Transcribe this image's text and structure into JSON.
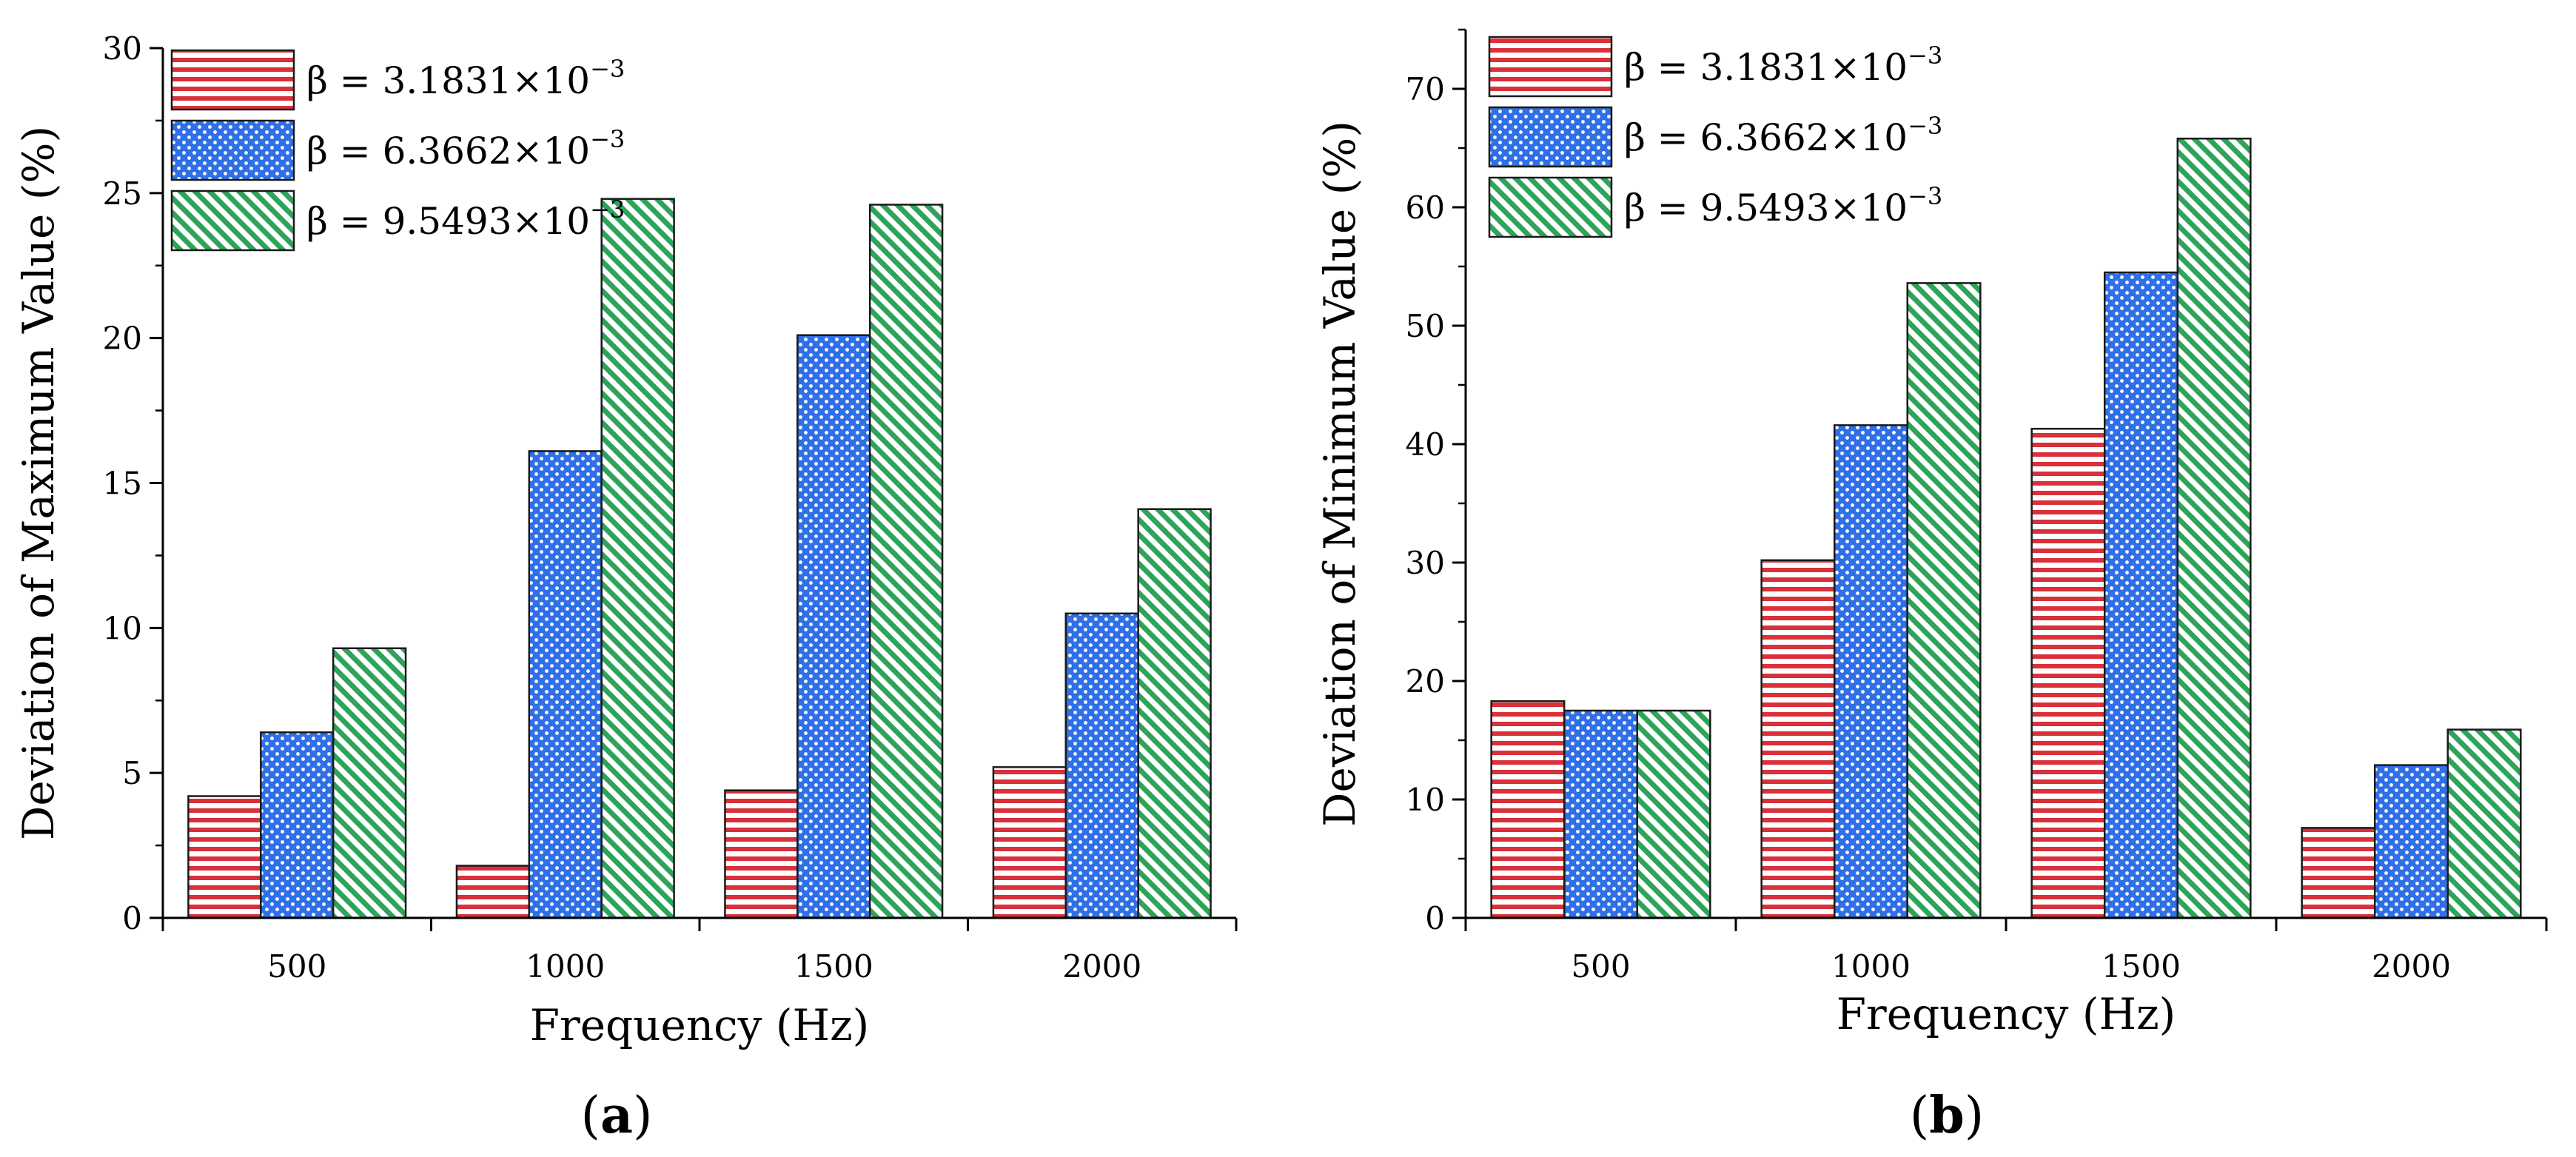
{
  "figure": {
    "panels": [
      {
        "label_open": "(",
        "label_letter": "a",
        "label_close": ")"
      },
      {
        "label_open": "(",
        "label_letter": "b",
        "label_close": ")"
      }
    ]
  },
  "colors": {
    "s1_stroke": "#d9303a",
    "s1_fill": "#f5b5b8",
    "s2_stroke": "#1f4fc4",
    "s2_fill": "#2f6fe8",
    "s3_stroke": "#1f8a43",
    "s3_fill": "#2fa35a"
  },
  "chart_data": [
    {
      "type": "bar",
      "title": "",
      "xlabel": "Frequency (Hz)",
      "ylabel": "Deviation of Maximum Value (%)",
      "categories": [
        "500",
        "1000",
        "1500",
        "2000"
      ],
      "ylim": [
        0,
        30
      ],
      "yticks": [
        0,
        5,
        10,
        15,
        20,
        25,
        30
      ],
      "legend_position": "top-left",
      "series": [
        {
          "name": "β = 3.1831×10",
          "exp": "−3",
          "pattern": "hlines",
          "values": [
            4.2,
            1.8,
            4.4,
            5.2
          ]
        },
        {
          "name": "β = 6.3662×10",
          "exp": "−3",
          "pattern": "dots",
          "values": [
            6.4,
            16.1,
            20.1,
            10.5
          ]
        },
        {
          "name": "β = 9.5493×10",
          "exp": "−3",
          "pattern": "diag",
          "values": [
            9.3,
            24.8,
            24.6,
            14.1
          ]
        }
      ]
    },
    {
      "type": "bar",
      "title": "",
      "xlabel": "Frequency (Hz)",
      "ylabel": "Deviation of Minimum Value (%)",
      "categories": [
        "500",
        "1000",
        "1500",
        "2000"
      ],
      "ylim": [
        0,
        75
      ],
      "yticks": [
        0,
        10,
        20,
        30,
        40,
        50,
        60,
        70
      ],
      "legend_position": "top-left",
      "series": [
        {
          "name": "β = 3.1831×10",
          "exp": "−3",
          "pattern": "hlines",
          "values": [
            18.3,
            30.2,
            41.3,
            7.6
          ]
        },
        {
          "name": "β = 6.3662×10",
          "exp": "−3",
          "pattern": "dots",
          "values": [
            17.5,
            41.6,
            54.5,
            12.9
          ]
        },
        {
          "name": "β = 9.5493×10",
          "exp": "−3",
          "pattern": "diag",
          "values": [
            17.5,
            53.6,
            65.8,
            15.9
          ]
        }
      ]
    }
  ]
}
